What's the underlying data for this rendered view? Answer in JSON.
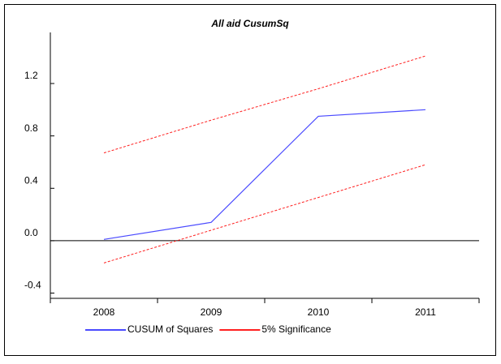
{
  "chart_data": {
    "type": "line",
    "title": "All aid CusumSq",
    "categories": [
      "2008",
      "2009",
      "2010",
      "2011"
    ],
    "series": [
      {
        "name": "CUSUM of Squares",
        "color": "#4a4aff",
        "values": [
          0.01,
          0.14,
          0.95,
          1.0
        ]
      },
      {
        "name": "5% Significance",
        "color": "#ff2020",
        "dashed": true,
        "values": [
          0.67,
          0.92,
          1.16,
          1.41
        ],
        "lower_values": [
          -0.17,
          0.08,
          0.33,
          0.58
        ]
      }
    ],
    "ylim": [
      -0.44,
      1.59
    ],
    "yticks": [
      -0.4,
      {
        "value": 0,
        "label": "0.0"
      },
      0.4,
      0.8,
      1.2
    ],
    "zero_line": true
  }
}
